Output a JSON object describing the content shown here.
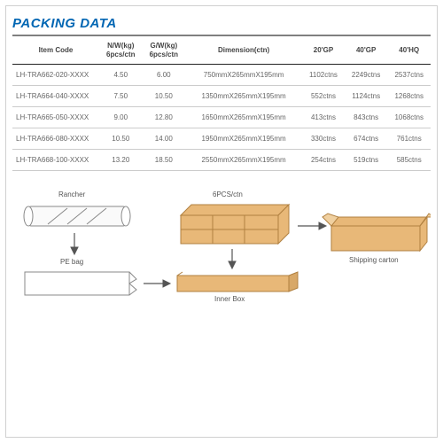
{
  "title": "PACKING DATA",
  "columns": [
    "Item Code",
    "N/W(kg)\n6pcs/ctn",
    "G/W(kg)\n6pcs/ctn",
    "Dimension(ctn)",
    "20'GP",
    "40'GP",
    "40'HQ"
  ],
  "rows": [
    [
      "LH-TRA662-020-XXXX",
      "4.50",
      "6.00",
      "750mmX265mmX195mm",
      "1102ctns",
      "2249ctns",
      "2537ctns"
    ],
    [
      "LH-TRA664-040-XXXX",
      "7.50",
      "10.50",
      "1350mmX265mmX195mm",
      "552ctns",
      "1124ctns",
      "1268ctns"
    ],
    [
      "LH-TRA665-050-XXXX",
      "9.00",
      "12.80",
      "1650mmX265mmX195mm",
      "413ctns",
      "843ctns",
      "1068ctns"
    ],
    [
      "LH-TRA666-080-XXXX",
      "10.50",
      "14.00",
      "1950mmX265mmX195mm",
      "330ctns",
      "674ctns",
      "761ctns"
    ],
    [
      "LH-TRA668-100-XXXX",
      "13.20",
      "18.50",
      "2550mmX265mmX195mm",
      "254ctns",
      "519ctns",
      "585ctns"
    ]
  ],
  "labels": {
    "rancher": "Rancher",
    "pebag": "PE bag",
    "sixpcs": "6PCS/ctn",
    "innerbox": "Inner Box",
    "shipping": "Shipping carton"
  },
  "colors": {
    "carton_fill": "#e8b878",
    "carton_stroke": "#b08040",
    "line": "#888",
    "tube": "#f4f4f4"
  }
}
